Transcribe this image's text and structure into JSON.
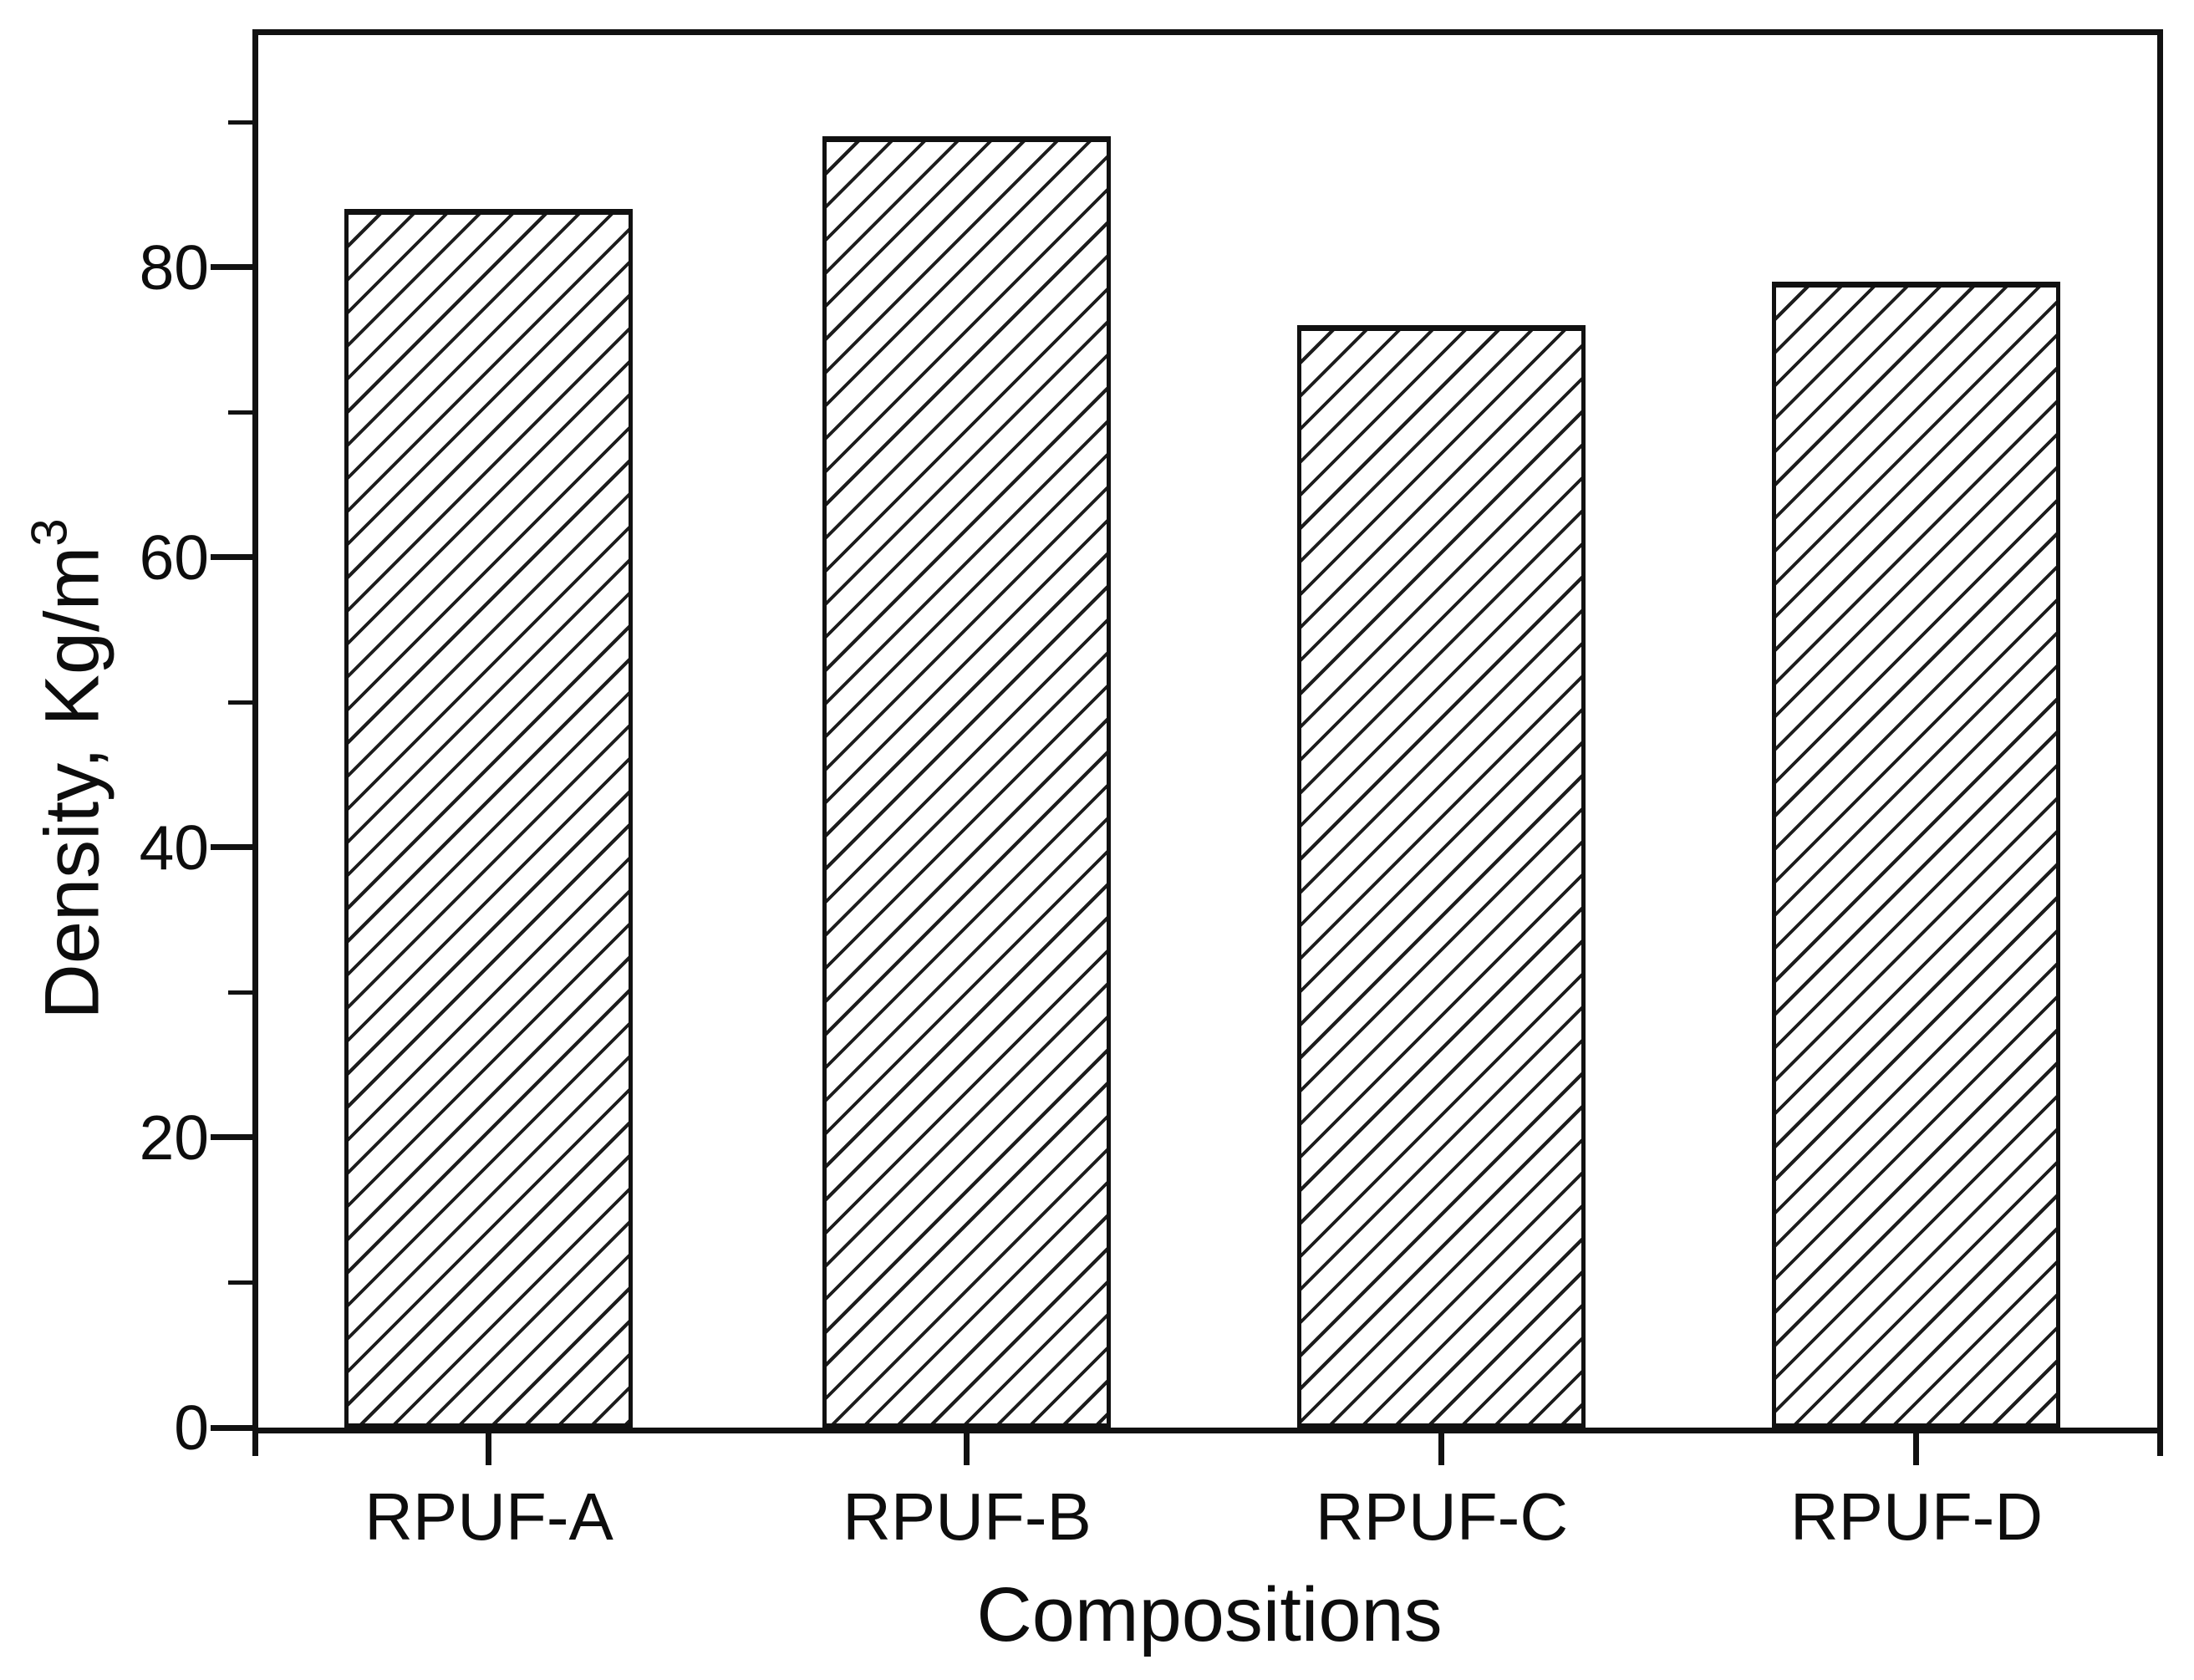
{
  "chart_data": {
    "type": "bar",
    "title": "",
    "categories": [
      "RPUF-A",
      "RPUF-B",
      "RPUF-C",
      "RPUF-D"
    ],
    "values": [
      84,
      89,
      76,
      79
    ],
    "xlabel": "Compositions",
    "ylabel_base": "Density, Kg/m",
    "ylabel_exponent": "3",
    "y_ticks_major": [
      0,
      20,
      40,
      60,
      80
    ],
    "y_ticks_minor": [
      10,
      30,
      50,
      70,
      90
    ],
    "ylim": [
      0,
      96
    ],
    "grid": false,
    "legend": "none",
    "bar_style": {
      "fill": "#ffffff",
      "hatch": "diagonal-forward-slash",
      "edge_color": "#111111"
    },
    "colors": {
      "ink": "#111111",
      "background": "#ffffff"
    }
  }
}
